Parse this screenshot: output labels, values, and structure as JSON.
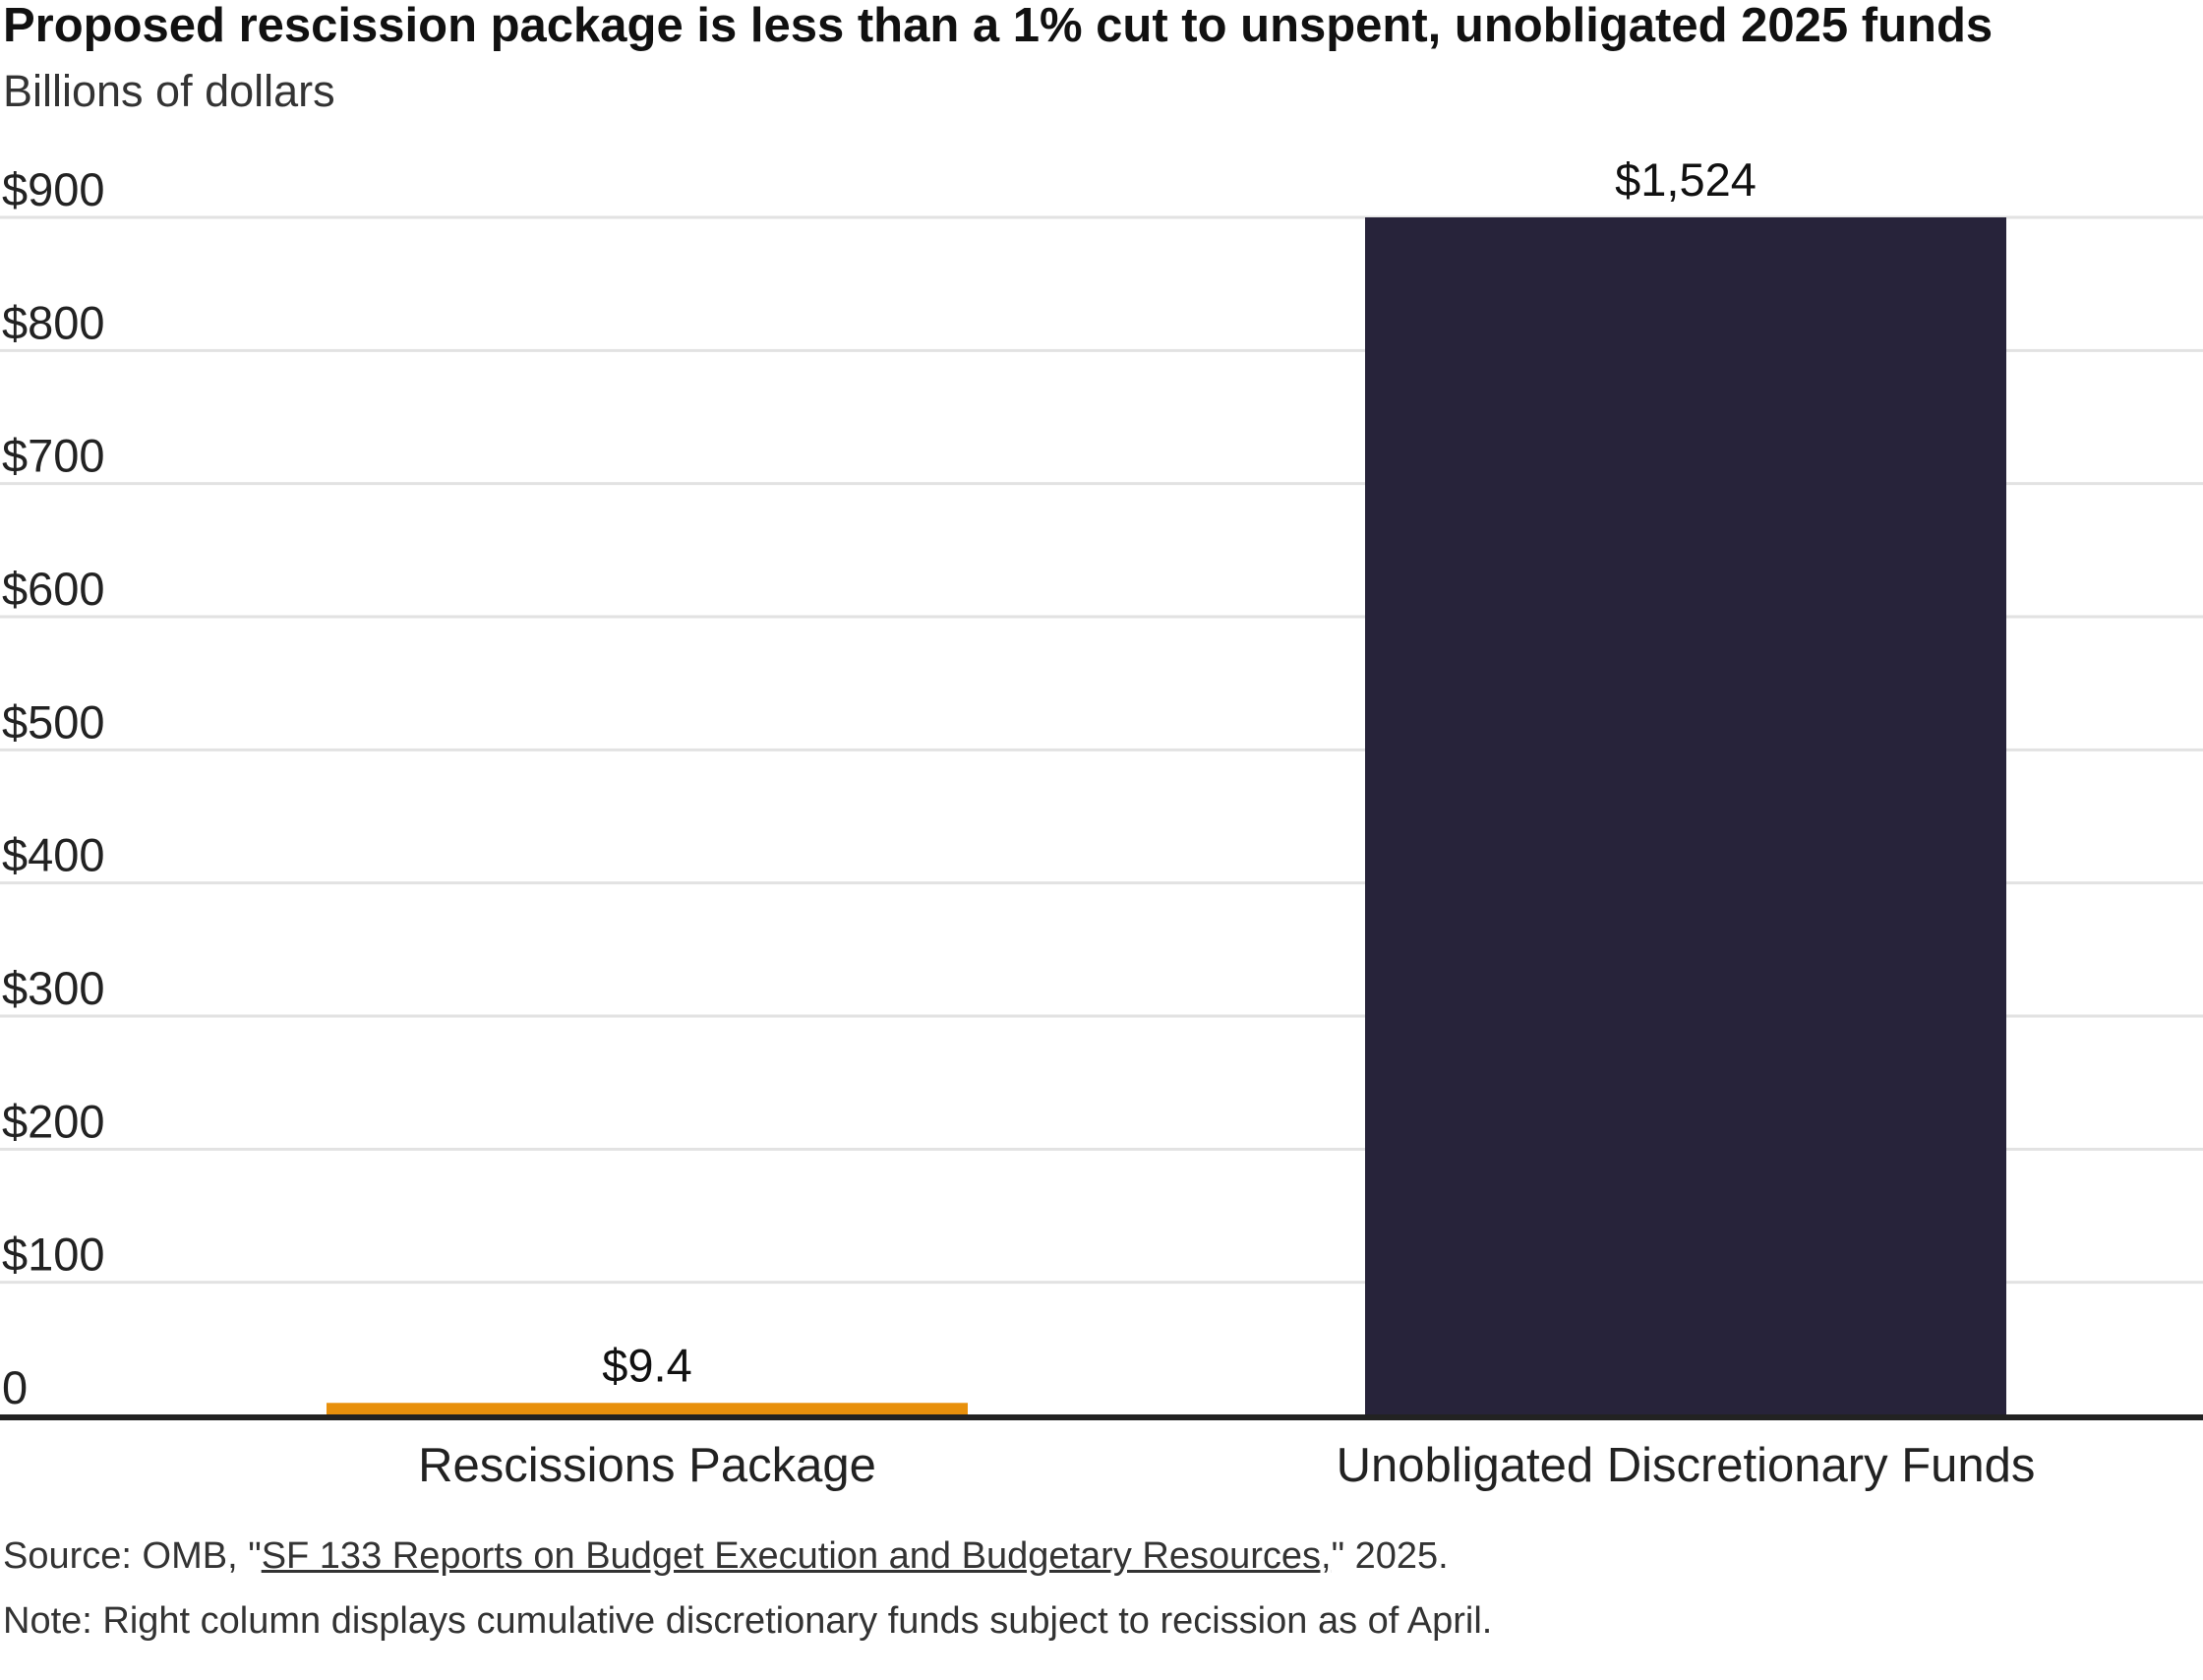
{
  "title": "Proposed rescission package is less than a 1% cut to unspent, unobligated 2025 funds",
  "subtitle": "Billions of dollars",
  "source": {
    "prefix": "Source: OMB, \"",
    "link_text": "SF 133 Reports on Budget Execution and Budgetary Resources,",
    "suffix": "\" 2025."
  },
  "note": "Note: Right column displays cumulative discretionary funds subject to recission as of April.",
  "colors": {
    "rescissions": "#e8900c",
    "unobligated": "#27233a",
    "grid": "#e2e2e2",
    "baseline": "#222222"
  },
  "chart_data": {
    "type": "bar",
    "categories": [
      "Rescissions Package",
      "Unobligated Discretionary Funds"
    ],
    "values": [
      9.4,
      1524
    ],
    "data_labels": [
      "$9.4",
      "$1,524"
    ],
    "ylim": [
      0,
      900
    ],
    "yticks": [
      0,
      100,
      200,
      300,
      400,
      500,
      600,
      700,
      800,
      900
    ],
    "ytick_labels": [
      "0",
      "$100",
      "$200",
      "$300",
      "$400",
      "$500",
      "$600",
      "$700",
      "$800",
      "$900"
    ],
    "clipped_at_axis_max": [
      false,
      true
    ],
    "grid": true,
    "legend": "none"
  }
}
